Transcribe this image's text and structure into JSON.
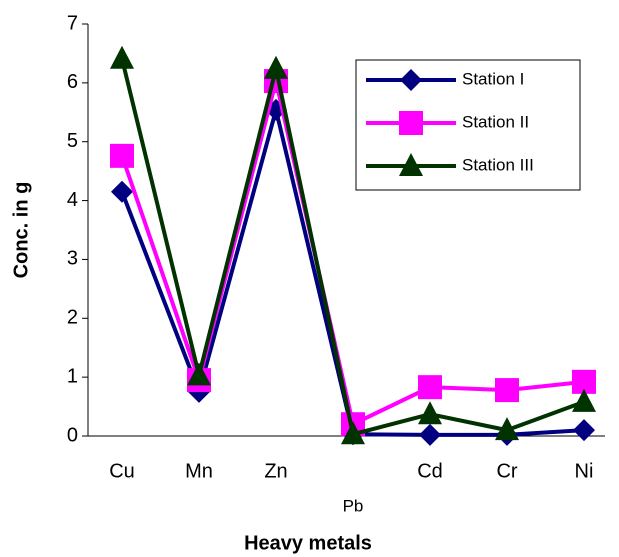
{
  "chart_data": {
    "type": "line",
    "x_label": "Heavy metals",
    "y_label": "Conc. in  g",
    "categories": [
      "Cu",
      "Mn",
      "Zn",
      "Pb",
      "Cd",
      "Cr",
      "Ni"
    ],
    "series": [
      {
        "name": "Station I",
        "color": "#000080",
        "marker": "diamond",
        "values": [
          4.15,
          0.75,
          5.54,
          0.03,
          0.02,
          0.02,
          0.1
        ]
      },
      {
        "name": "Station II",
        "color": "#ff00ff",
        "marker": "square",
        "values": [
          4.76,
          0.95,
          6.03,
          0.2,
          0.83,
          0.78,
          0.92
        ]
      },
      {
        "name": "Station III",
        "color": "#003300",
        "marker": "triangle",
        "values": [
          6.41,
          1.03,
          6.24,
          0.03,
          0.37,
          0.1,
          0.58
        ]
      }
    ],
    "ylim": [
      0,
      7
    ],
    "yticks": [
      0,
      1,
      2,
      3,
      4,
      5,
      6,
      7
    ],
    "grid": false
  }
}
